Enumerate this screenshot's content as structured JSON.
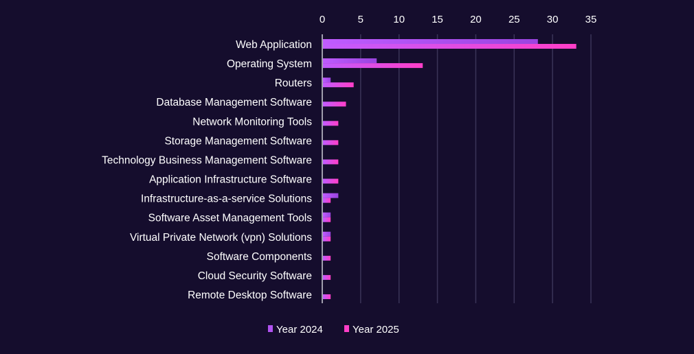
{
  "chart_data": {
    "type": "bar",
    "orientation": "horizontal",
    "title": "",
    "xlabel": "",
    "ylabel": "",
    "xlim": [
      0,
      35
    ],
    "ticks": [
      0,
      5,
      10,
      15,
      20,
      25,
      30,
      35
    ],
    "grid": true,
    "legend_placement": "bottom",
    "categories": [
      "Web Application",
      "Operating System",
      "Routers",
      "Database Management Software",
      "Network Monitoring Tools",
      "Storage Management Software",
      "Technology Business Management Software",
      "Application Infrastructure Software",
      "Infrastructure-as-a-service Solutions",
      "Software Asset Management Tools",
      "Virtual Private Network (vpn) Solutions",
      "Software Components",
      "Cloud Security Software",
      "Remote Desktop Software"
    ],
    "series": [
      {
        "name": "Year 2024",
        "color": "#b052f0",
        "values": [
          28,
          7,
          1,
          0,
          0,
          0,
          0,
          0,
          2,
          1,
          1,
          0,
          0,
          0
        ]
      },
      {
        "name": "Year 2025",
        "color": "#ff3ec8",
        "values": [
          33,
          13,
          4,
          3,
          2,
          2,
          2,
          2,
          1,
          1,
          1,
          1,
          1,
          1
        ]
      }
    ]
  }
}
